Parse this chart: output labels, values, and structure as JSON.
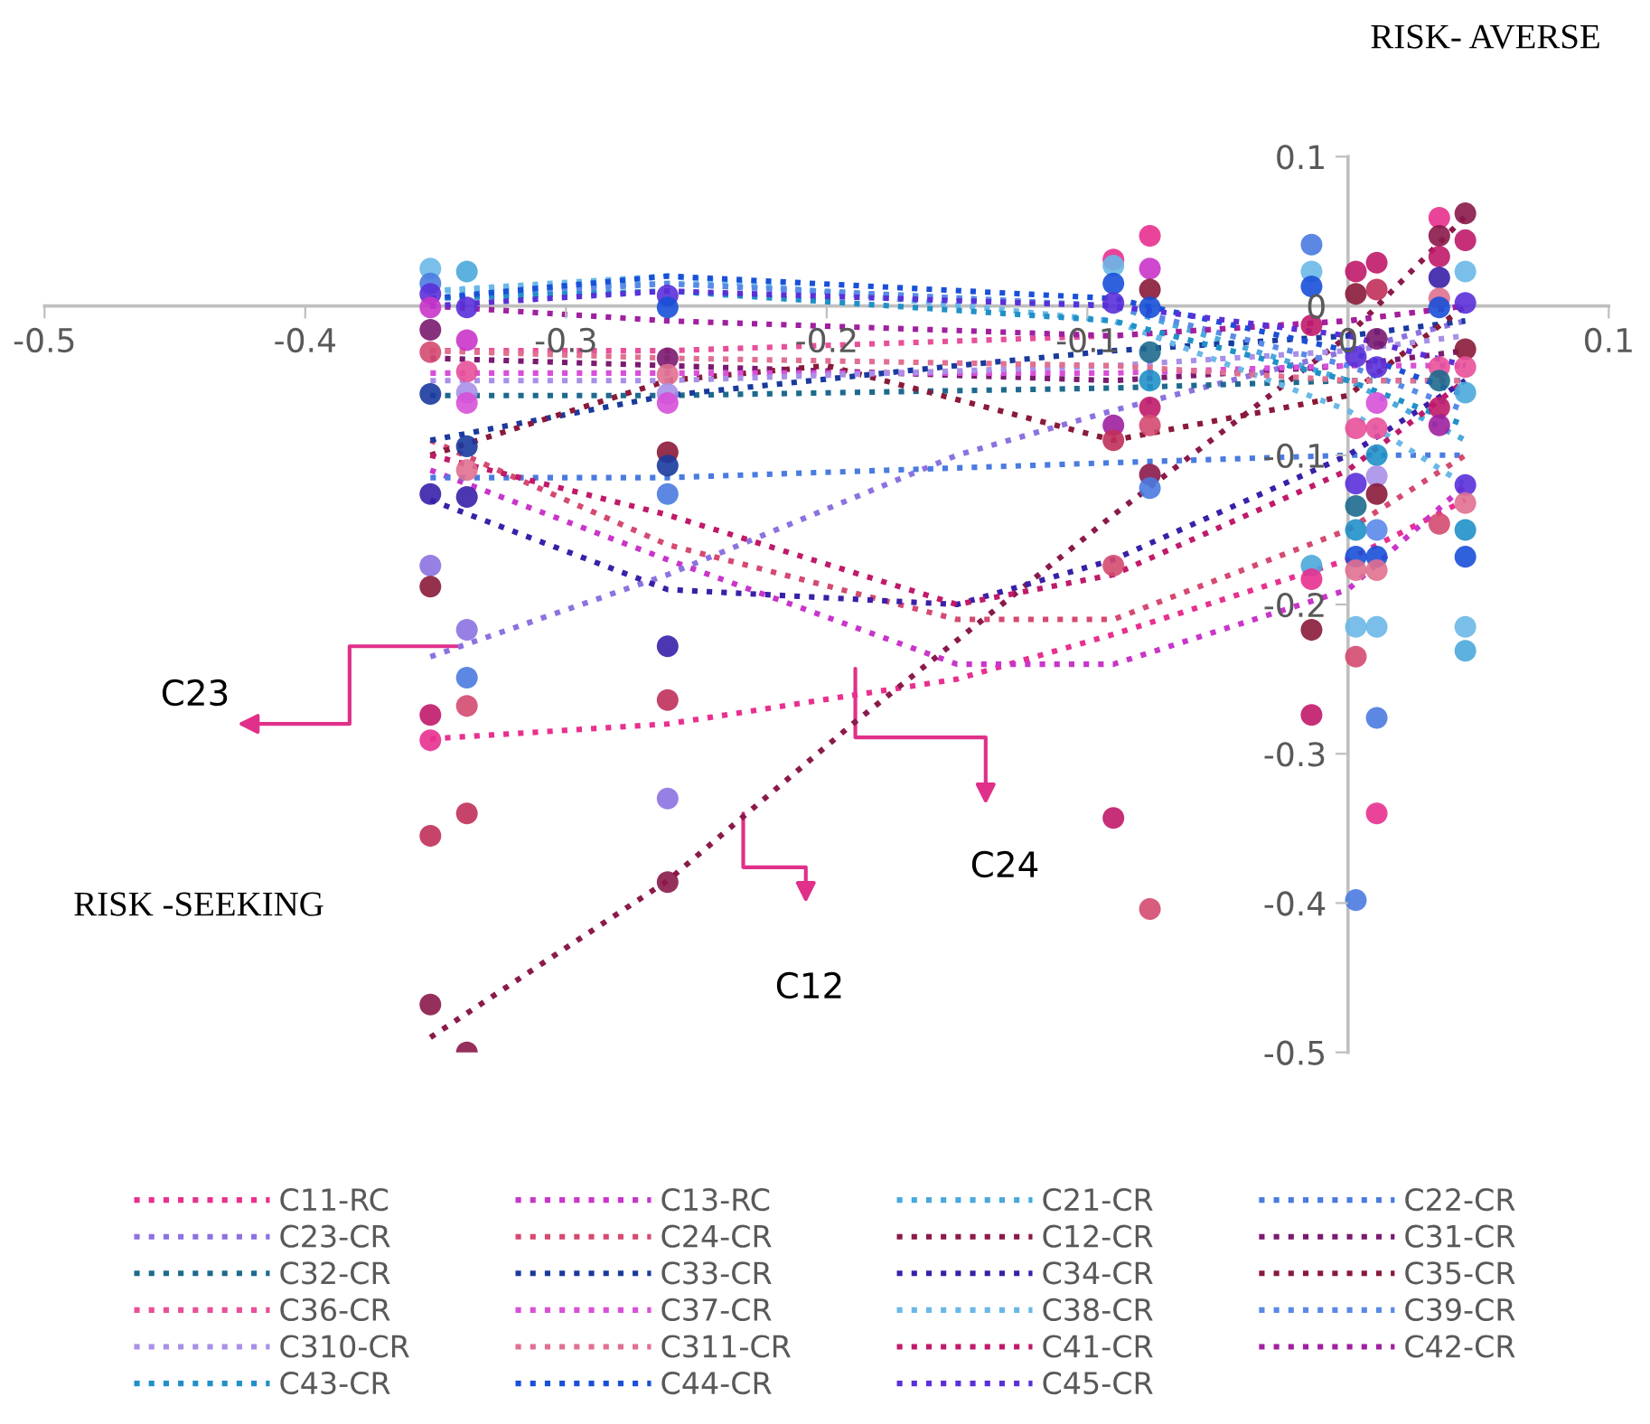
{
  "chart_data": {
    "type": "scatter",
    "xlim": [
      -0.5,
      0.1
    ],
    "ylim": [
      -0.5,
      0.1
    ],
    "xticks": [
      -0.5,
      -0.4,
      -0.3,
      -0.2,
      -0.1,
      0,
      0.1
    ],
    "yticks": [
      -0.5,
      -0.4,
      -0.3,
      -0.2,
      -0.1,
      0,
      0.1
    ],
    "grid": false,
    "legend": "bottom",
    "annotations": [
      {
        "text": "C23",
        "x": -0.34,
        "y": -0.228
      },
      "C24",
      "C12",
      "RISK- AVERSE",
      "RISK -SEEKING"
    ],
    "series": [
      {
        "type": "scatter",
        "marker": "circle",
        "x": [
          -0.352,
          -0.352,
          -0.352,
          -0.352,
          -0.352,
          -0.352,
          -0.352,
          -0.352,
          -0.352,
          -0.352,
          -0.352,
          -0.352,
          -0.352,
          -0.352,
          -0.338,
          -0.338,
          -0.338,
          -0.338,
          -0.338,
          -0.338,
          -0.338,
          -0.338,
          -0.338,
          -0.338,
          -0.338,
          -0.338,
          -0.338,
          -0.338,
          -0.261,
          -0.261,
          -0.261,
          -0.261,
          -0.261,
          -0.261,
          -0.261,
          -0.261,
          -0.261,
          -0.261,
          -0.261,
          -0.261,
          -0.261,
          -0.09,
          -0.09,
          -0.09,
          -0.09,
          -0.09,
          -0.09,
          -0.09,
          -0.09,
          -0.076,
          -0.076,
          -0.076,
          -0.076,
          -0.076,
          -0.076,
          -0.076,
          -0.076,
          -0.076,
          -0.076,
          -0.076,
          -0.014,
          -0.014,
          -0.014,
          -0.014,
          -0.014,
          -0.014,
          -0.014,
          -0.014,
          0.003,
          0.003,
          0.003,
          0.003,
          0.003,
          0.003,
          0.003,
          0.003,
          0.003,
          0.003,
          0.003,
          0.003,
          0.011,
          0.011,
          0.011,
          0.011,
          0.011,
          0.011,
          0.011,
          0.011,
          0.011,
          0.011,
          0.011,
          0.011,
          0.011,
          0.011,
          0.011,
          0.035,
          0.035,
          0.035,
          0.035,
          0.035,
          0.035,
          0.035,
          0.035,
          0.035,
          0.035,
          0.035,
          0.045,
          0.045,
          0.045,
          0.045,
          0.045,
          0.045,
          0.045,
          0.045,
          0.045,
          0.045,
          0.045,
          0.045,
          0.045
        ],
        "values": [
          0.025,
          0.015,
          0.008,
          -0.001,
          -0.016,
          -0.031,
          -0.059,
          -0.126,
          -0.174,
          -0.188,
          -0.274,
          -0.291,
          -0.355,
          -0.468,
          0.023,
          -0.001,
          -0.023,
          -0.044,
          -0.058,
          -0.065,
          -0.094,
          -0.11,
          -0.128,
          -0.217,
          -0.249,
          -0.268,
          -0.34,
          -0.5,
          0.007,
          -0.001,
          -0.035,
          -0.046,
          -0.059,
          -0.065,
          -0.098,
          -0.107,
          -0.126,
          -0.228,
          -0.264,
          -0.33,
          -0.386,
          0.031,
          0.027,
          0.015,
          0.002,
          -0.08,
          -0.09,
          -0.174,
          -0.343,
          0.047,
          0.025,
          0.011,
          -0.001,
          -0.031,
          -0.05,
          -0.068,
          -0.08,
          -0.113,
          -0.122,
          -0.404,
          0.041,
          0.023,
          0.013,
          -0.013,
          -0.174,
          -0.183,
          -0.217,
          -0.274,
          0.023,
          0.008,
          -0.034,
          -0.082,
          -0.119,
          -0.134,
          -0.15,
          -0.168,
          -0.177,
          -0.215,
          -0.235,
          -0.398,
          0.029,
          0.011,
          -0.022,
          -0.041,
          -0.065,
          -0.082,
          -0.1,
          -0.114,
          -0.126,
          -0.15,
          -0.168,
          -0.177,
          -0.215,
          -0.276,
          -0.34,
          0.059,
          0.047,
          0.033,
          0.019,
          0.005,
          -0.001,
          -0.041,
          -0.05,
          -0.068,
          -0.08,
          -0.146,
          0.062,
          0.044,
          0.023,
          0.002,
          -0.029,
          -0.041,
          -0.058,
          -0.12,
          -0.132,
          -0.15,
          -0.168,
          -0.215,
          -0.231
        ],
        "colors": [
          "#6ab8e8",
          "#4a7be0",
          "#5a30d8",
          "#c935c9",
          "#7a1a70",
          "#d44a70",
          "#1a3a9e",
          "#3a20a8",
          "#8c72e0",
          "#8a1a3a",
          "#c01a6a",
          "#e8308f",
          "#c0305a",
          "#8a1a4a",
          "#4aa8dc",
          "#5a30d8",
          "#c935c9",
          "#e8509a",
          "#a890e8",
          "#d850d8",
          "#1a3a9e",
          "#e07090",
          "#3a20a8",
          "#8c72e0",
          "#4a7be0",
          "#d44a70",
          "#c0305a",
          "#8a1a4a",
          "#5a30d8",
          "#1a50d8",
          "#7a1a70",
          "#e07090",
          "#a890e8",
          "#d850d8",
          "#8a1a3a",
          "#1a3a9e",
          "#4a7be0",
          "#3a20a8",
          "#c0305a",
          "#8c72e0",
          "#8a1a4a",
          "#e8308f",
          "#6ab8e8",
          "#1a50d8",
          "#5a30d8",
          "#a020a0",
          "#c0305a",
          "#d44a70",
          "#c01a6a",
          "#e8308f",
          "#c935c9",
          "#8a1a3a",
          "#1a50d8",
          "#1e6a8e",
          "#2090c8",
          "#c01a6a",
          "#d44a70",
          "#8a1a4a",
          "#4a7be0",
          "#d44a70",
          "#4a7be0",
          "#6ab8e8",
          "#1a50d8",
          "#c01a6a",
          "#4aa8dc",
          "#e8308f",
          "#8a1a3a",
          "#c01a6a",
          "#c01a6a",
          "#8a1a3a",
          "#5a30d8",
          "#e8509a",
          "#5a30d8",
          "#1e6a8e",
          "#2090c8",
          "#1a50d8",
          "#e07090",
          "#6ab8e8",
          "#d44a70",
          "#4a7be0",
          "#c01a6a",
          "#c0305a",
          "#7a1a70",
          "#5a30d8",
          "#d850d8",
          "#e8509a",
          "#2090c8",
          "#a890e8",
          "#8a1a3a",
          "#5a8ae8",
          "#1a50d8",
          "#e07090",
          "#6ab8e8",
          "#4a7be0",
          "#e8308f",
          "#e8308f",
          "#8a1a4a",
          "#c01a6a",
          "#3a20a8",
          "#e07090",
          "#1a50d8",
          "#e8509a",
          "#1e6a8e",
          "#c01a6a",
          "#a020a0",
          "#d44a70",
          "#8a1a4a",
          "#c01a6a",
          "#6ab8e8",
          "#5a30d8",
          "#8a1a3a",
          "#e8509a",
          "#4aa8dc",
          "#5a30d8",
          "#e07090",
          "#2090c8",
          "#1a50d8",
          "#6ab8e8",
          "#4aa8dc"
        ]
      },
      {
        "type": "line",
        "name": "C11-RC",
        "color": "#e8308f",
        "line_style": "dotted",
        "x": [
          -0.352,
          -0.261,
          -0.15,
          -0.09,
          0,
          0.045
        ],
        "values": [
          -0.29,
          -0.28,
          -0.25,
          -0.22,
          -0.17,
          -0.13
        ]
      },
      {
        "type": "line",
        "name": "C13-RC",
        "color": "#c935c9",
        "line_style": "dotted",
        "x": [
          -0.352,
          -0.261,
          -0.15,
          -0.09,
          0,
          0.045
        ],
        "values": [
          -0.11,
          -0.17,
          -0.24,
          -0.24,
          -0.19,
          -0.12
        ]
      },
      {
        "type": "line",
        "name": "C21-CR",
        "color": "#4aa8dc",
        "line_style": "dotted",
        "x": [
          -0.352,
          -0.261,
          -0.09,
          0,
          0.045
        ],
        "values": [
          0.01,
          0.015,
          0,
          -0.05,
          -0.09
        ]
      },
      {
        "type": "line",
        "name": "C22-CR",
        "color": "#4a7be0",
        "line_style": "dotted",
        "x": [
          -0.352,
          -0.261,
          -0.09,
          0,
          0.045
        ],
        "values": [
          -0.115,
          -0.115,
          -0.105,
          -0.1,
          -0.1
        ]
      },
      {
        "type": "line",
        "name": "C23-CR",
        "color": "#8c72e0",
        "line_style": "dotted",
        "x": [
          -0.352,
          -0.261,
          -0.15,
          -0.09,
          0,
          0.045
        ],
        "values": [
          -0.235,
          -0.18,
          -0.1,
          -0.07,
          -0.03,
          -0.01
        ]
      },
      {
        "type": "line",
        "name": "C24-CR",
        "color": "#d44a70",
        "line_style": "dotted",
        "x": [
          -0.352,
          -0.261,
          -0.15,
          -0.09,
          0,
          0.045
        ],
        "values": [
          -0.09,
          -0.16,
          -0.21,
          -0.21,
          -0.15,
          -0.1
        ]
      },
      {
        "type": "line",
        "name": "C12-CR",
        "color": "#8a1a4a",
        "line_style": "dotted",
        "x": [
          -0.352,
          -0.261,
          -0.19,
          -0.09,
          0,
          0.045
        ],
        "values": [
          -0.49,
          -0.385,
          -0.28,
          -0.14,
          -0.02,
          0.06
        ]
      },
      {
        "type": "line",
        "name": "C31-CR",
        "color": "#7a1a70",
        "line_style": "dotted",
        "x": [
          -0.352,
          -0.261,
          -0.09,
          0,
          0.045
        ],
        "values": [
          -0.035,
          -0.04,
          -0.05,
          -0.04,
          -0.03
        ]
      },
      {
        "type": "line",
        "name": "C32-CR",
        "color": "#1e6a8e",
        "line_style": "dotted",
        "x": [
          -0.352,
          -0.261,
          -0.09,
          0,
          0.045
        ],
        "values": [
          -0.06,
          -0.06,
          -0.055,
          -0.05,
          -0.05
        ]
      },
      {
        "type": "line",
        "name": "C33-CR",
        "color": "#1a3a9e",
        "line_style": "dotted",
        "x": [
          -0.352,
          -0.261,
          -0.15,
          -0.09,
          0,
          0.045
        ],
        "values": [
          -0.09,
          -0.06,
          -0.04,
          -0.03,
          -0.02,
          -0.01
        ]
      },
      {
        "type": "line",
        "name": "C34-CR",
        "color": "#3a20a8",
        "line_style": "dotted",
        "x": [
          -0.352,
          -0.261,
          -0.15,
          -0.09,
          0,
          0.045
        ],
        "values": [
          -0.13,
          -0.19,
          -0.2,
          -0.17,
          -0.1,
          -0.05
        ]
      },
      {
        "type": "line",
        "name": "C35-CR",
        "color": "#8a1a3a",
        "line_style": "dotted",
        "x": [
          -0.352,
          -0.261,
          -0.2,
          -0.09,
          0,
          0.045
        ],
        "values": [
          -0.1,
          -0.05,
          -0.04,
          -0.09,
          -0.06,
          0
        ]
      },
      {
        "type": "line",
        "name": "C36-CR",
        "color": "#e8509a",
        "line_style": "dotted",
        "x": [
          -0.352,
          -0.261,
          -0.09,
          0,
          0.045
        ],
        "values": [
          -0.03,
          -0.03,
          -0.02,
          -0.01,
          0
        ]
      },
      {
        "type": "line",
        "name": "C37-CR",
        "color": "#d850d8",
        "line_style": "dotted",
        "x": [
          -0.352,
          -0.261,
          -0.09,
          0,
          0.045
        ],
        "values": [
          -0.045,
          -0.045,
          -0.045,
          -0.04,
          -0.04
        ]
      },
      {
        "type": "line",
        "name": "C38-CR",
        "color": "#6ab8e8",
        "line_style": "dotted",
        "x": [
          -0.352,
          -0.261,
          -0.09,
          0,
          0.045
        ],
        "values": [
          0.01,
          0.02,
          -0.01,
          -0.07,
          -0.12
        ]
      },
      {
        "type": "line",
        "name": "C39-CR",
        "color": "#5a8ae8",
        "line_style": "dotted",
        "x": [
          -0.352,
          -0.261,
          -0.09,
          0,
          0.045
        ],
        "values": [
          0.005,
          0.015,
          0,
          -0.04,
          -0.07
        ]
      },
      {
        "type": "line",
        "name": "C310-CR",
        "color": "#a890e8",
        "line_style": "dotted",
        "x": [
          -0.352,
          -0.261,
          -0.09,
          0,
          0.045
        ],
        "values": [
          -0.05,
          -0.05,
          -0.04,
          -0.03,
          -0.02
        ]
      },
      {
        "type": "line",
        "name": "C311-CR",
        "color": "#e07090",
        "line_style": "dotted",
        "x": [
          -0.352,
          -0.261,
          -0.09,
          0,
          0.045
        ],
        "values": [
          -0.03,
          -0.035,
          -0.04,
          -0.05,
          -0.05
        ]
      },
      {
        "type": "line",
        "name": "C41-CR",
        "color": "#c01a6a",
        "line_style": "dotted",
        "x": [
          -0.352,
          -0.261,
          -0.15,
          -0.09,
          0,
          0.045
        ],
        "values": [
          -0.1,
          -0.14,
          -0.2,
          -0.18,
          -0.11,
          -0.05
        ]
      },
      {
        "type": "line",
        "name": "C42-CR",
        "color": "#a020a0",
        "line_style": "dotted",
        "x": [
          -0.352,
          -0.261,
          -0.09,
          0,
          0.045
        ],
        "values": [
          0,
          -0.01,
          -0.02,
          -0.01,
          0
        ]
      },
      {
        "type": "line",
        "name": "C43-CR",
        "color": "#2090c8",
        "line_style": "dotted",
        "x": [
          -0.352,
          -0.261,
          -0.09,
          0,
          0.045
        ],
        "values": [
          0.005,
          0.01,
          -0.01,
          -0.05,
          -0.08
        ]
      },
      {
        "type": "line",
        "name": "C44-CR",
        "color": "#1a50d8",
        "line_style": "dotted",
        "x": [
          -0.352,
          -0.261,
          -0.09,
          0,
          0.045
        ],
        "values": [
          0.005,
          0.02,
          0.005,
          -0.03,
          -0.06
        ]
      },
      {
        "type": "line",
        "name": "C45-CR",
        "color": "#5a30d8",
        "line_style": "dotted",
        "x": [
          -0.352,
          -0.261,
          -0.09,
          0,
          0.045
        ],
        "values": [
          0,
          0.01,
          0,
          -0.02,
          -0.04
        ]
      }
    ]
  }
}
